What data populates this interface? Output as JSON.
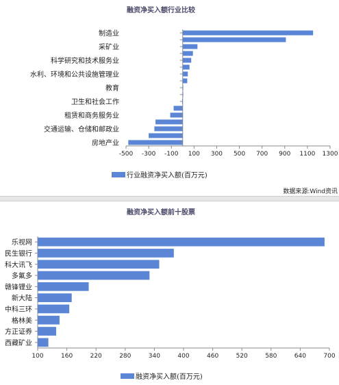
{
  "chart_data": [
    {
      "type": "bar",
      "orientation": "horizontal",
      "title": "融资净买入额行业比较",
      "categories": [
        "制造业",
        "",
        "采矿业",
        "",
        "科学研究和技术服务业",
        "",
        "水利、环境和公共设施管理业",
        "",
        "教育",
        "",
        "卫生和社会工作",
        "",
        "租赁和商务服务业",
        "",
        "交通运输、仓储和邮政业",
        "",
        "房地产业"
      ],
      "series": [
        {
          "name": "行业融资净买入额(百万元)",
          "values": [
            1150,
            910,
            130,
            90,
            75,
            60,
            45,
            40,
            5,
            0,
            -5,
            -80,
            -110,
            -240,
            -250,
            -300,
            -480
          ]
        }
      ],
      "xlim": [
        -500,
        1300
      ],
      "xticks": [
        -500,
        -300,
        -100,
        100,
        300,
        500,
        700,
        900,
        1100,
        1300
      ],
      "color": "#5b86d6",
      "legend": "bottom",
      "source": "数据来源:Wind资讯"
    },
    {
      "type": "bar",
      "orientation": "horizontal",
      "title": "融资净买入额前十股票",
      "categories": [
        "乐视网",
        "民生银行",
        "科大讯飞",
        "多氟多",
        "赣锋锂业",
        "新大陆",
        "中科三环",
        "格林美",
        "方正证券",
        "西藏矿业"
      ],
      "series": [
        {
          "name": "融资净买入额(百万元)",
          "values": [
            690,
            380,
            350,
            330,
            205,
            170,
            165,
            145,
            138,
            122
          ]
        }
      ],
      "xlim": [
        100,
        700
      ],
      "xticks": [
        100,
        160,
        220,
        280,
        340,
        400,
        460,
        520,
        580,
        640,
        700
      ],
      "color": "#5b86d6",
      "legend": "bottom"
    }
  ]
}
